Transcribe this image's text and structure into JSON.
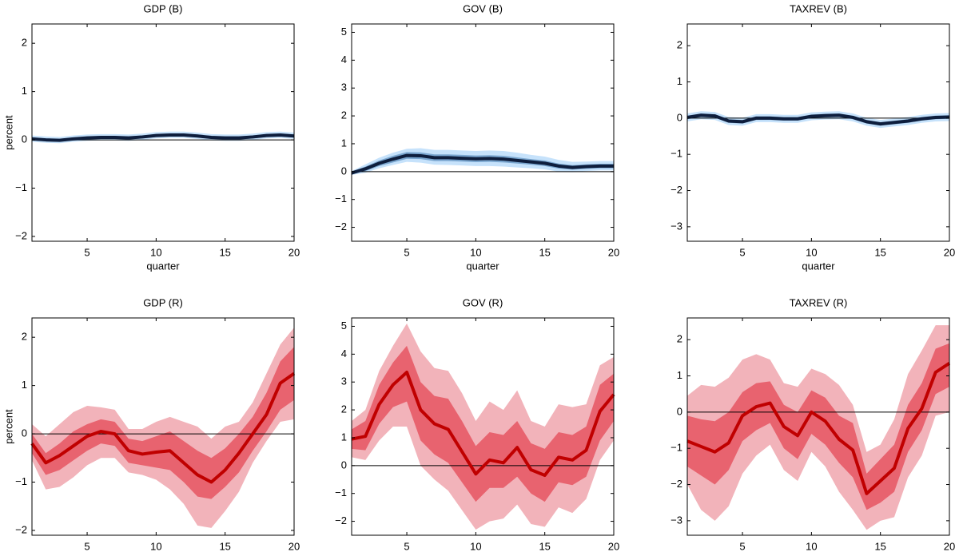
{
  "chart_data": [
    {
      "type": "band-line",
      "title": "GDP (B)",
      "ylabel": "percent",
      "xlabel": "quarter",
      "x": [
        1,
        2,
        3,
        4,
        5,
        6,
        7,
        8,
        9,
        10,
        11,
        12,
        13,
        14,
        15,
        16,
        17,
        18,
        19,
        20
      ],
      "xlim": [
        1,
        20
      ],
      "xticks": [
        5,
        10,
        15,
        20
      ],
      "ylim": [
        -2.1,
        2.4
      ],
      "yticks": [
        {
          "value": -2,
          "label": "−2"
        },
        {
          "value": -1,
          "label": "−1"
        },
        0,
        1,
        2
      ],
      "reference_line": 0,
      "bands": [
        {
          "color": "#c6e2fb",
          "lower": [
            -0.04,
            -0.06,
            -0.07,
            -0.04,
            -0.02,
            -0.01,
            -0.01,
            -0.02,
            0.0,
            0.03,
            0.04,
            0.04,
            0.02,
            -0.01,
            -0.02,
            -0.02,
            0.0,
            0.03,
            0.04,
            0.02
          ],
          "upper": [
            0.09,
            0.07,
            0.06,
            0.09,
            0.11,
            0.12,
            0.12,
            0.11,
            0.13,
            0.16,
            0.17,
            0.17,
            0.15,
            0.12,
            0.11,
            0.11,
            0.13,
            0.16,
            0.17,
            0.15
          ]
        },
        {
          "color": "#7aa6cf",
          "lower": [
            -0.01,
            -0.03,
            -0.04,
            -0.01,
            0.01,
            0.02,
            0.02,
            0.01,
            0.03,
            0.06,
            0.07,
            0.07,
            0.05,
            0.02,
            0.01,
            0.01,
            0.03,
            0.06,
            0.07,
            0.05
          ],
          "upper": [
            0.05,
            0.03,
            0.02,
            0.05,
            0.07,
            0.08,
            0.08,
            0.07,
            0.09,
            0.12,
            0.13,
            0.13,
            0.11,
            0.08,
            0.07,
            0.07,
            0.09,
            0.12,
            0.13,
            0.11
          ]
        }
      ],
      "line": {
        "color": "#0e1e3d",
        "values": [
          0.02,
          0.0,
          -0.01,
          0.02,
          0.04,
          0.05,
          0.05,
          0.04,
          0.06,
          0.09,
          0.1,
          0.1,
          0.08,
          0.05,
          0.04,
          0.04,
          0.06,
          0.09,
          0.1,
          0.08
        ]
      }
    },
    {
      "type": "band-line",
      "title": "GOV (B)",
      "xlabel": "quarter",
      "x": [
        1,
        2,
        3,
        4,
        5,
        6,
        7,
        8,
        9,
        10,
        11,
        12,
        13,
        14,
        15,
        16,
        17,
        18,
        19,
        20
      ],
      "xlim": [
        1,
        20
      ],
      "xticks": [
        5,
        10,
        15,
        20
      ],
      "ylim": [
        -2.5,
        5.3
      ],
      "yticks": [
        {
          "value": -2,
          "label": "−2"
        },
        {
          "value": -1,
          "label": "−1"
        },
        0,
        1,
        2,
        3,
        4,
        5
      ],
      "reference_line": 0,
      "bands": [
        {
          "color": "#c6e2fb",
          "lower": [
            -0.12,
            -0.04,
            0.12,
            0.24,
            0.35,
            0.32,
            0.25,
            0.24,
            0.22,
            0.2,
            0.2,
            0.18,
            0.15,
            0.12,
            0.08,
            0.0,
            -0.02,
            0.02,
            0.04,
            0.04
          ],
          "upper": [
            0.02,
            0.26,
            0.5,
            0.68,
            0.82,
            0.84,
            0.78,
            0.78,
            0.76,
            0.74,
            0.76,
            0.74,
            0.68,
            0.6,
            0.54,
            0.42,
            0.35,
            0.36,
            0.38,
            0.38
          ]
        },
        {
          "color": "#7aa6cf",
          "lower": [
            -0.1,
            0.02,
            0.2,
            0.33,
            0.46,
            0.45,
            0.38,
            0.38,
            0.36,
            0.34,
            0.35,
            0.33,
            0.29,
            0.25,
            0.2,
            0.11,
            0.07,
            0.1,
            0.12,
            0.12
          ],
          "upper": [
            0.0,
            0.18,
            0.4,
            0.57,
            0.7,
            0.69,
            0.62,
            0.62,
            0.6,
            0.58,
            0.59,
            0.57,
            0.51,
            0.45,
            0.4,
            0.29,
            0.23,
            0.26,
            0.28,
            0.28
          ]
        }
      ],
      "line": {
        "color": "#0e1e3d",
        "values": [
          -0.05,
          0.1,
          0.3,
          0.45,
          0.58,
          0.57,
          0.5,
          0.5,
          0.48,
          0.46,
          0.47,
          0.45,
          0.4,
          0.35,
          0.3,
          0.2,
          0.15,
          0.18,
          0.2,
          0.2
        ]
      }
    },
    {
      "type": "band-line",
      "title": "TAXREV (B)",
      "xlabel": "quarter",
      "x": [
        1,
        2,
        3,
        4,
        5,
        6,
        7,
        8,
        9,
        10,
        11,
        12,
        13,
        14,
        15,
        16,
        17,
        18,
        19,
        20
      ],
      "xlim": [
        1,
        20
      ],
      "xticks": [
        5,
        10,
        15,
        20
      ],
      "ylim": [
        -3.4,
        2.6
      ],
      "yticks": [
        {
          "value": -3,
          "label": "−3"
        },
        {
          "value": -2,
          "label": "−2"
        },
        {
          "value": -1,
          "label": "−1"
        },
        0,
        1,
        2
      ],
      "reference_line": 0,
      "bands": [
        {
          "color": "#c6e2fb",
          "lower": [
            -0.09,
            -0.03,
            -0.05,
            -0.19,
            -0.21,
            -0.11,
            -0.11,
            -0.13,
            -0.13,
            -0.06,
            -0.04,
            -0.03,
            -0.09,
            -0.21,
            -0.27,
            -0.23,
            -0.19,
            -0.13,
            -0.09,
            -0.08
          ],
          "upper": [
            0.13,
            0.19,
            0.17,
            0.03,
            0.01,
            0.11,
            0.11,
            0.09,
            0.09,
            0.16,
            0.18,
            0.19,
            0.13,
            0.01,
            -0.05,
            -0.01,
            0.03,
            0.09,
            0.13,
            0.14
          ]
        },
        {
          "color": "#7aa6cf",
          "lower": [
            -0.03,
            0.03,
            0.01,
            -0.13,
            -0.15,
            -0.05,
            -0.05,
            -0.07,
            -0.07,
            0.0,
            0.02,
            0.03,
            -0.03,
            -0.15,
            -0.21,
            -0.17,
            -0.13,
            -0.07,
            -0.03,
            -0.02
          ],
          "upper": [
            0.07,
            0.13,
            0.11,
            -0.03,
            -0.05,
            0.05,
            0.05,
            0.03,
            0.03,
            0.1,
            0.12,
            0.13,
            0.07,
            -0.05,
            -0.11,
            -0.07,
            -0.03,
            0.03,
            0.07,
            0.08
          ]
        }
      ],
      "line": {
        "color": "#0e1e3d",
        "values": [
          0.02,
          0.08,
          0.06,
          -0.08,
          -0.1,
          0.0,
          0.0,
          -0.02,
          -0.02,
          0.05,
          0.07,
          0.08,
          0.02,
          -0.1,
          -0.16,
          -0.12,
          -0.08,
          -0.02,
          0.02,
          0.03
        ]
      }
    },
    {
      "type": "band-line",
      "title": "GDP (R)",
      "ylabel": "percent",
      "x": [
        1,
        2,
        3,
        4,
        5,
        6,
        7,
        8,
        9,
        10,
        11,
        12,
        13,
        14,
        15,
        16,
        17,
        18,
        19,
        20
      ],
      "xlim": [
        1,
        20
      ],
      "xticks": [
        5,
        10,
        15,
        20
      ],
      "ylim": [
        -2.1,
        2.4
      ],
      "yticks": [
        {
          "value": -2,
          "label": "−2"
        },
        {
          "value": -1,
          "label": "−1"
        },
        0,
        1,
        2
      ],
      "reference_line": 0,
      "bands": [
        {
          "color": "#f2b3ba",
          "lower": [
            -0.55,
            -1.15,
            -1.1,
            -0.9,
            -0.65,
            -0.5,
            -0.5,
            -0.8,
            -0.85,
            -0.95,
            -1.15,
            -1.45,
            -1.9,
            -1.95,
            -1.6,
            -1.2,
            -0.6,
            -0.15,
            0.25,
            0.3
          ],
          "upper": [
            0.2,
            -0.05,
            0.2,
            0.45,
            0.58,
            0.55,
            0.5,
            0.1,
            0.1,
            0.25,
            0.35,
            0.25,
            0.15,
            -0.1,
            0.15,
            0.25,
            0.65,
            1.25,
            1.85,
            2.2
          ]
        },
        {
          "color": "#e8636f",
          "lower": [
            -0.4,
            -0.85,
            -0.75,
            -0.55,
            -0.35,
            -0.2,
            -0.25,
            -0.6,
            -0.65,
            -0.7,
            -0.75,
            -1.0,
            -1.3,
            -1.35,
            -1.1,
            -0.8,
            -0.35,
            0.05,
            0.5,
            0.7
          ],
          "upper": [
            0.0,
            -0.4,
            -0.2,
            0.05,
            0.2,
            0.3,
            0.25,
            -0.1,
            -0.15,
            -0.05,
            0.05,
            -0.15,
            -0.35,
            -0.5,
            -0.3,
            0.0,
            0.35,
            0.85,
            1.5,
            1.8
          ]
        }
      ],
      "line": {
        "color": "#c00000",
        "values": [
          -0.2,
          -0.6,
          -0.45,
          -0.25,
          -0.05,
          0.05,
          0.0,
          -0.35,
          -0.42,
          -0.38,
          -0.35,
          -0.6,
          -0.85,
          -1.0,
          -0.75,
          -0.4,
          0.0,
          0.4,
          1.05,
          1.25
        ]
      }
    },
    {
      "type": "band-line",
      "title": "GOV (R)",
      "x": [
        1,
        2,
        3,
        4,
        5,
        6,
        7,
        8,
        9,
        10,
        11,
        12,
        13,
        14,
        15,
        16,
        17,
        18,
        19,
        20
      ],
      "xlim": [
        1,
        20
      ],
      "xticks": [
        5,
        10,
        15,
        20
      ],
      "ylim": [
        -2.5,
        5.3
      ],
      "yticks": [
        {
          "value": -2,
          "label": "−2"
        },
        {
          "value": -1,
          "label": "−1"
        },
        0,
        1,
        2,
        3,
        4,
        5
      ],
      "reference_line": 0,
      "bands": [
        {
          "color": "#f2b3ba",
          "lower": [
            0.3,
            0.2,
            0.9,
            1.4,
            1.4,
            0.0,
            -0.5,
            -0.9,
            -1.6,
            -2.3,
            -2.0,
            -1.9,
            -1.4,
            -2.1,
            -2.2,
            -1.5,
            -1.7,
            -1.2,
            0.2,
            0.9
          ],
          "upper": [
            1.6,
            2.0,
            3.4,
            4.3,
            5.1,
            4.1,
            3.5,
            3.4,
            2.6,
            1.6,
            2.3,
            2.0,
            2.7,
            1.6,
            1.4,
            2.2,
            2.1,
            2.2,
            3.6,
            3.9
          ]
        },
        {
          "color": "#e8636f",
          "lower": [
            0.6,
            0.55,
            1.5,
            2.1,
            2.3,
            0.9,
            0.4,
            0.1,
            -0.6,
            -1.3,
            -0.8,
            -0.8,
            -0.4,
            -1.0,
            -1.3,
            -0.6,
            -0.7,
            -0.4,
            0.9,
            1.6
          ],
          "upper": [
            1.3,
            1.6,
            2.9,
            3.7,
            4.3,
            3.0,
            2.5,
            2.4,
            1.6,
            0.7,
            1.2,
            1.1,
            1.6,
            0.8,
            0.6,
            1.2,
            1.1,
            1.4,
            2.9,
            3.3
          ]
        }
      ],
      "line": {
        "color": "#c00000",
        "values": [
          0.95,
          1.05,
          2.2,
          2.9,
          3.35,
          2.0,
          1.5,
          1.3,
          0.5,
          -0.3,
          0.2,
          0.1,
          0.65,
          -0.15,
          -0.35,
          0.3,
          0.2,
          0.55,
          1.95,
          2.55
        ]
      }
    },
    {
      "type": "band-line",
      "title": "TAXREV (R)",
      "x": [
        1,
        2,
        3,
        4,
        5,
        6,
        7,
        8,
        9,
        10,
        11,
        12,
        13,
        14,
        15,
        16,
        17,
        18,
        19,
        20
      ],
      "xlim": [
        1,
        20
      ],
      "xticks": [
        5,
        10,
        15,
        20
      ],
      "ylim": [
        -3.4,
        2.6
      ],
      "yticks": [
        {
          "value": -3,
          "label": "−3"
        },
        {
          "value": -2,
          "label": "−2"
        },
        {
          "value": -1,
          "label": "−1"
        },
        0,
        1,
        2
      ],
      "reference_line": 0,
      "bands": [
        {
          "color": "#f2b3ba",
          "lower": [
            -2.0,
            -2.7,
            -3.0,
            -2.6,
            -1.7,
            -1.2,
            -0.9,
            -1.6,
            -1.9,
            -1.1,
            -1.5,
            -2.2,
            -2.7,
            -3.25,
            -3.0,
            -2.9,
            -1.8,
            -1.2,
            -0.1,
            0.0
          ],
          "upper": [
            0.45,
            0.75,
            0.7,
            0.95,
            1.45,
            1.6,
            1.45,
            0.8,
            0.7,
            1.2,
            1.05,
            0.75,
            0.2,
            -1.1,
            -0.9,
            -0.2,
            1.05,
            1.7,
            2.4,
            2.4
          ]
        },
        {
          "color": "#e8636f",
          "lower": [
            -1.5,
            -1.75,
            -2.0,
            -1.6,
            -0.8,
            -0.5,
            -0.3,
            -1.0,
            -1.3,
            -0.6,
            -0.9,
            -1.4,
            -1.8,
            -2.7,
            -2.5,
            -2.2,
            -1.1,
            -0.5,
            0.5,
            0.7
          ],
          "upper": [
            -0.1,
            -0.2,
            -0.25,
            0.0,
            0.55,
            0.8,
            0.85,
            0.2,
            0.0,
            0.6,
            0.4,
            -0.1,
            -0.3,
            -1.7,
            -1.3,
            -0.9,
            0.2,
            0.8,
            1.75,
            1.9
          ]
        }
      ],
      "line": {
        "color": "#c00000",
        "values": [
          -0.8,
          -0.95,
          -1.1,
          -0.85,
          -0.1,
          0.15,
          0.25,
          -0.4,
          -0.65,
          0.0,
          -0.25,
          -0.75,
          -1.05,
          -2.25,
          -1.9,
          -1.55,
          -0.45,
          0.1,
          1.1,
          1.35
        ]
      }
    }
  ]
}
